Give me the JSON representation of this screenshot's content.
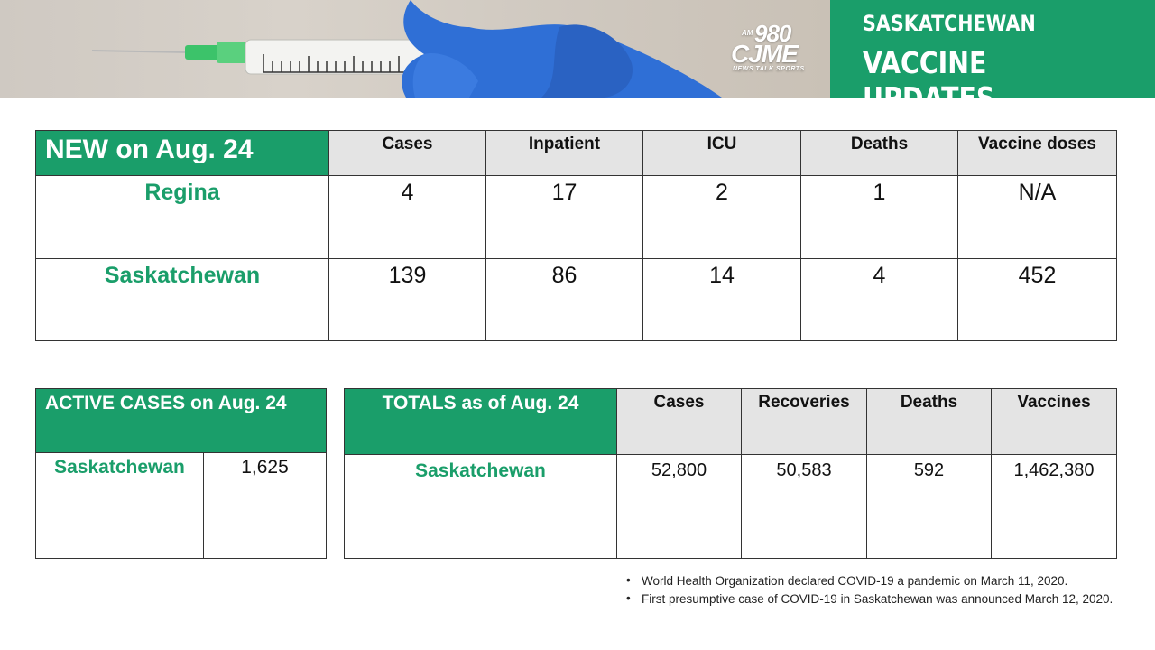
{
  "banner": {
    "logo": {
      "am": "AM",
      "frequency": "980",
      "call": "CJME",
      "tagline": "NEWS TALK SPORTS"
    },
    "line1": "SASKATCHEWAN",
    "line2": "VACCINE UPDATES",
    "colors": {
      "green": "#1a9e6a",
      "photo_bg": "#cfc9c2",
      "glove": "#2f6fd6"
    },
    "icons": [
      "syringe-icon",
      "glove-icon"
    ]
  },
  "new_table": {
    "title": "NEW on Aug. 24",
    "headers": [
      "Cases",
      "Inpatient",
      "ICU",
      "Deaths",
      "Vaccine doses"
    ],
    "rows": [
      {
        "label": "Regina",
        "values": [
          "4",
          "17",
          "2",
          "1",
          "N/A"
        ]
      },
      {
        "label": "Saskatchewan",
        "values": [
          "139",
          "86",
          "14",
          "4",
          "452"
        ]
      }
    ]
  },
  "active_table": {
    "title": "ACTIVE CASES on Aug. 24",
    "rows": [
      {
        "label": "Saskatchewan",
        "value": "1,625"
      }
    ]
  },
  "totals_table": {
    "title": "TOTALS as of Aug. 24",
    "headers": [
      "Cases",
      "Recoveries",
      "Deaths",
      "Vaccines"
    ],
    "rows": [
      {
        "label": "Saskatchewan",
        "values": [
          "52,800",
          "50,583",
          "592",
          "1,462,380"
        ]
      }
    ]
  },
  "notes": [
    "World Health Organization declared COVID-19 a pandemic on March 11, 2020.",
    "First presumptive case of COVID-19 in Saskatchewan was announced March 12, 2020."
  ]
}
